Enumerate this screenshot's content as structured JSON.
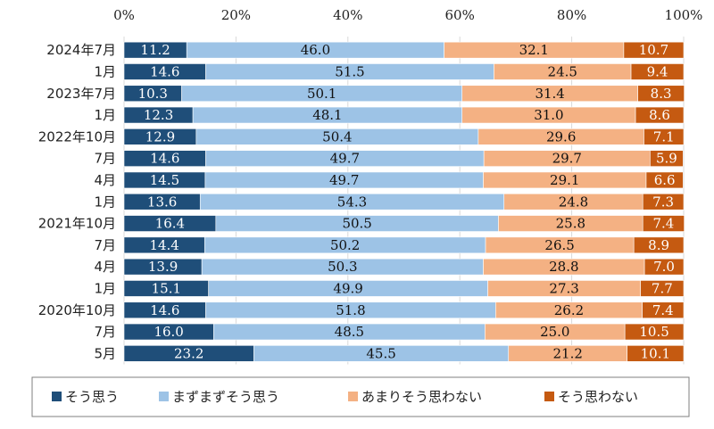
{
  "chart_data": {
    "type": "bar",
    "orientation": "horizontal",
    "stacked": "percent",
    "categories": [
      "2024年7月",
      "1月",
      "2023年7月",
      "1月",
      "2022年10月",
      "7月",
      "4月",
      "1月",
      "2021年10月",
      "7月",
      "4月",
      "1月",
      "2020年10月",
      "7月",
      "5月"
    ],
    "series": [
      {
        "name": "そう思う",
        "color": "#1f4e79",
        "label_color": "#ffffff",
        "values": [
          11.2,
          14.6,
          10.3,
          12.3,
          12.9,
          14.6,
          14.5,
          13.6,
          16.4,
          14.4,
          13.9,
          15.1,
          14.6,
          16.0,
          23.2
        ]
      },
      {
        "name": "まずまずそう思う",
        "color": "#9dc3e6",
        "label_color": "#111111",
        "values": [
          46.0,
          51.5,
          50.1,
          48.1,
          50.4,
          49.7,
          49.7,
          54.3,
          50.5,
          50.2,
          50.3,
          49.9,
          51.8,
          48.5,
          45.5
        ]
      },
      {
        "name": "あまりそう思わない",
        "color": "#f4b183",
        "label_color": "#111111",
        "values": [
          32.1,
          24.5,
          31.4,
          31.0,
          29.6,
          29.7,
          29.1,
          24.8,
          25.8,
          26.5,
          28.8,
          27.3,
          26.2,
          25.0,
          21.2
        ]
      },
      {
        "name": "そう思わない",
        "color": "#c55a11",
        "label_color": "#ffffff",
        "values": [
          10.7,
          9.4,
          8.3,
          8.6,
          7.1,
          5.9,
          6.6,
          7.3,
          7.4,
          8.9,
          7.0,
          7.7,
          7.4,
          10.5,
          10.1
        ]
      }
    ],
    "x_ticks": [
      "0%",
      "20%",
      "40%",
      "60%",
      "80%",
      "100%"
    ],
    "xlim": [
      0,
      100
    ],
    "grid": true,
    "legend_position": "bottom"
  }
}
